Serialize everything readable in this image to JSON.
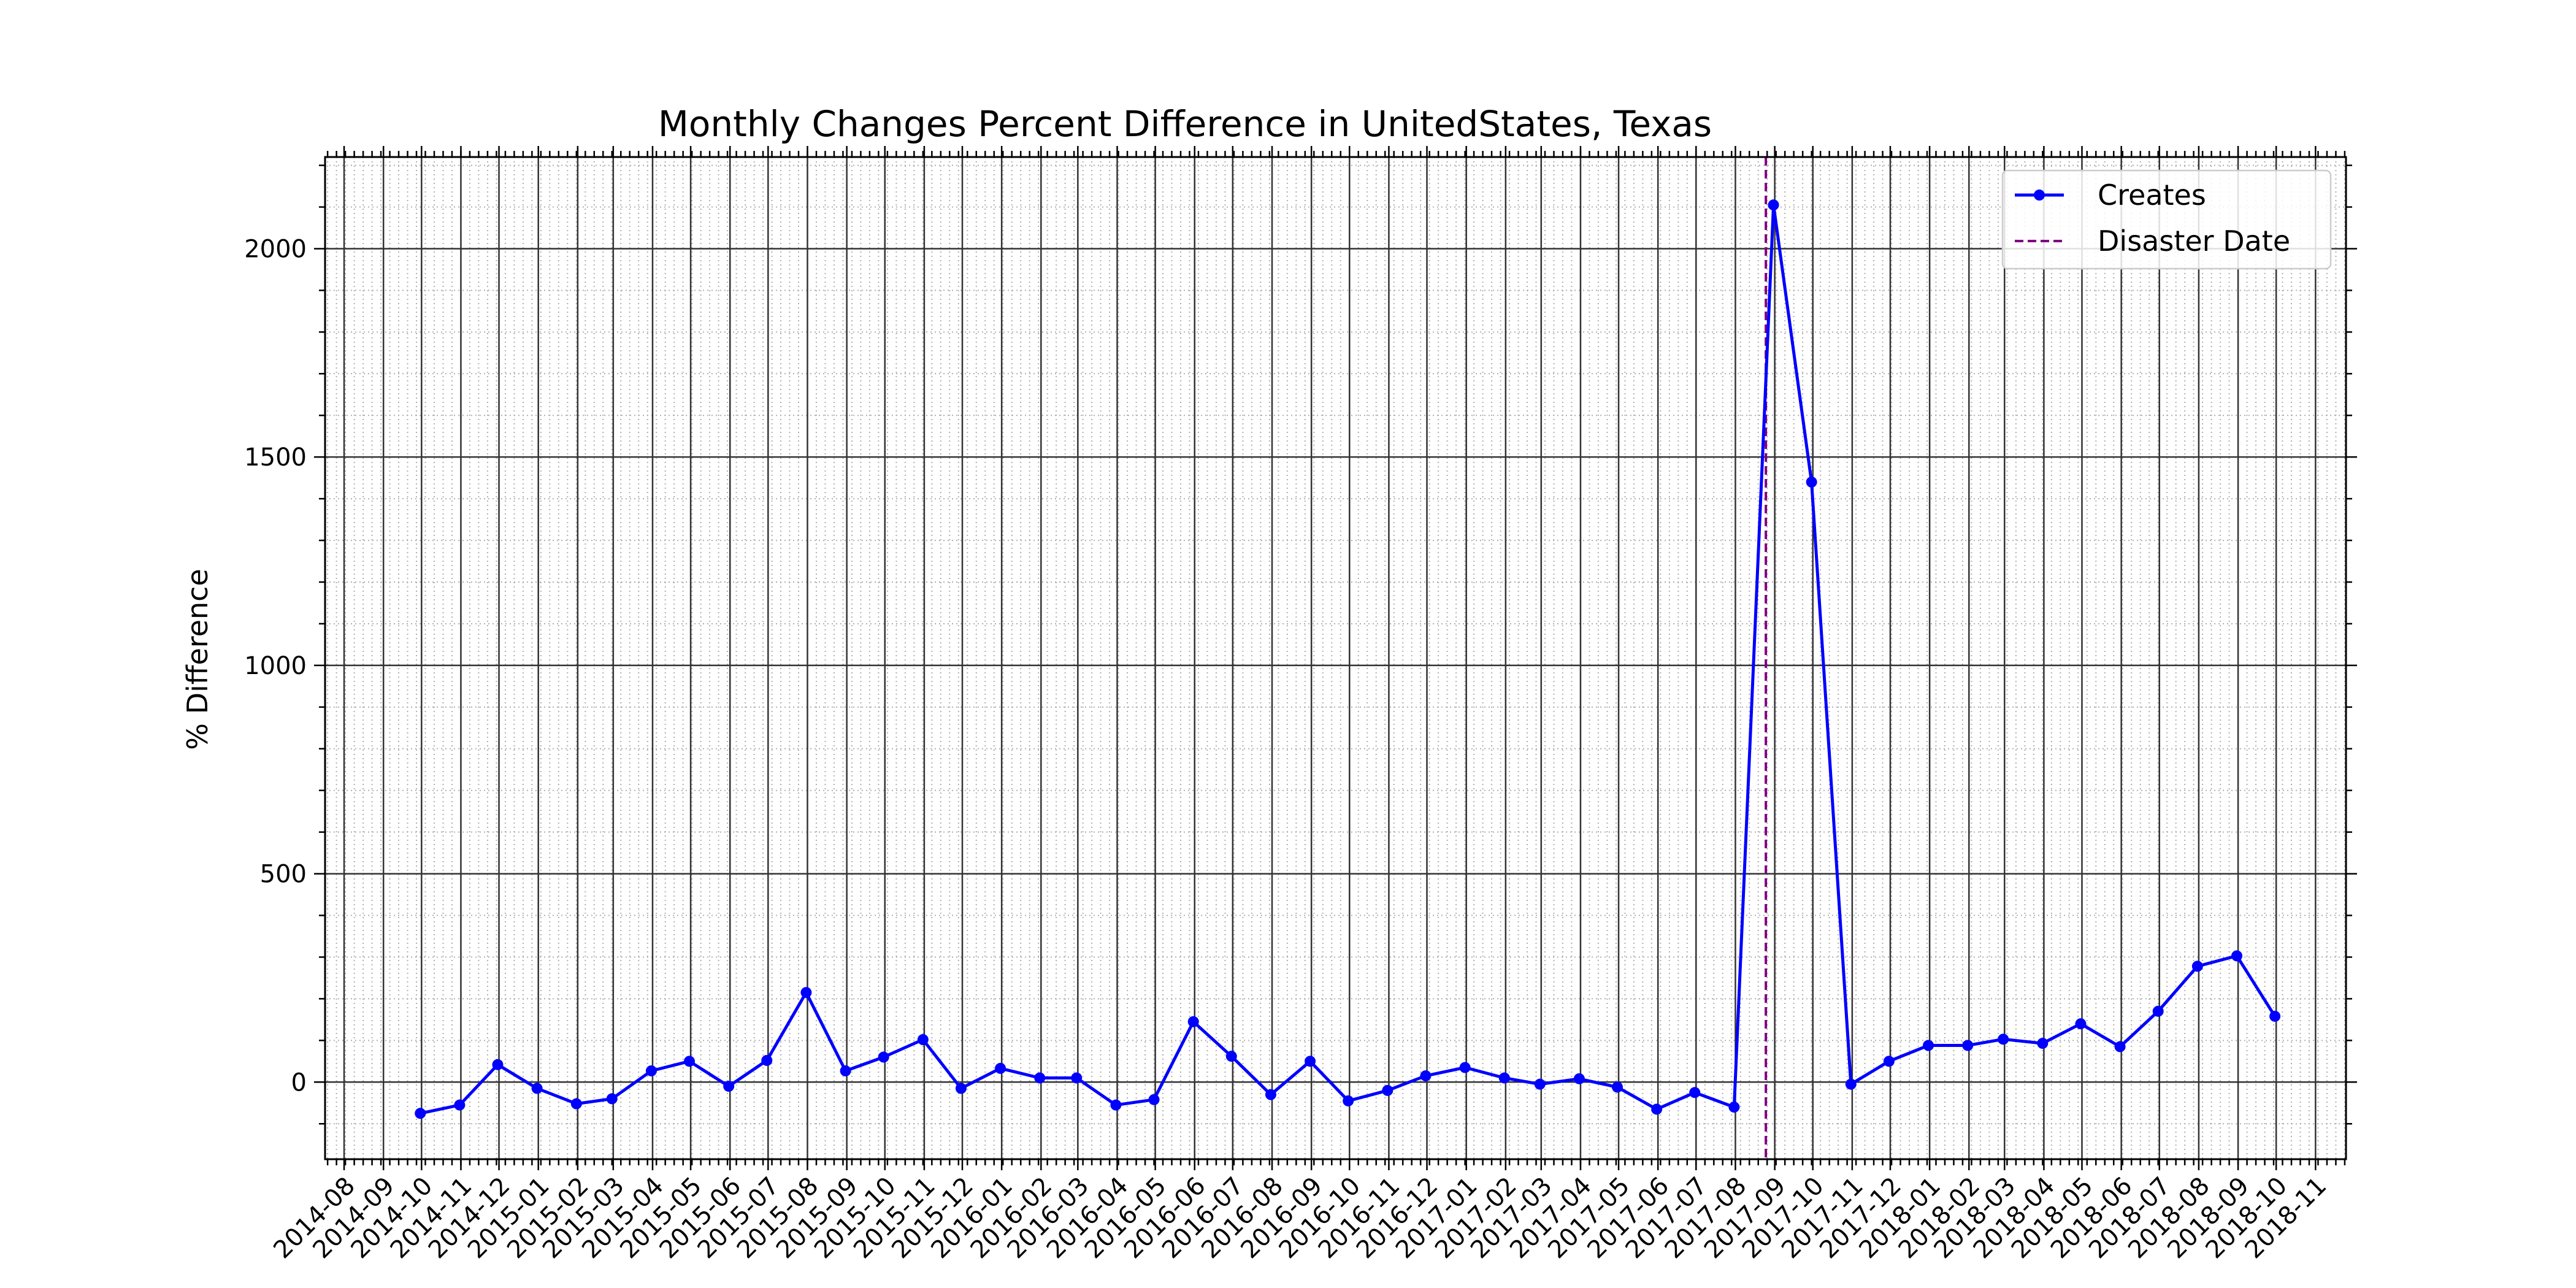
{
  "chart_data": {
    "type": "line",
    "title": "Monthly Changes Percent Difference in UnitedStates, Texas",
    "xlabel": "",
    "ylabel": "% Difference",
    "x_axis_type": "date",
    "xlim": [
      "2014-07-17",
      "2018-11-25"
    ],
    "ylim": [
      -185,
      2220
    ],
    "y_ticks": [
      0,
      500,
      1000,
      1500,
      2000
    ],
    "x_tick_labels": [
      "2014-08",
      "2014-09",
      "2014-10",
      "2014-11",
      "2014-12",
      "2015-01",
      "2015-02",
      "2015-03",
      "2015-04",
      "2015-05",
      "2015-06",
      "2015-07",
      "2015-08",
      "2015-09",
      "2015-10",
      "2015-11",
      "2015-12",
      "2016-01",
      "2016-02",
      "2016-03",
      "2016-04",
      "2016-05",
      "2016-06",
      "2016-07",
      "2016-08",
      "2016-09",
      "2016-10",
      "2016-11",
      "2016-12",
      "2017-01",
      "2017-02",
      "2017-03",
      "2017-04",
      "2017-05",
      "2017-06",
      "2017-07",
      "2017-08",
      "2017-09",
      "2017-10",
      "2017-11",
      "2017-12",
      "2018-01",
      "2018-02",
      "2018-03",
      "2018-04",
      "2018-05",
      "2018-06",
      "2018-07",
      "2018-08",
      "2018-09",
      "2018-10",
      "2018-11"
    ],
    "x_tick_rotation_deg": 45,
    "grid": {
      "major": true,
      "minor": true
    },
    "legend_position": "upper-right",
    "series": [
      {
        "name": "Creates",
        "color": "#0000ff",
        "marker": "circle",
        "points": [
          {
            "x": "2014-09-30",
            "y": -75
          },
          {
            "x": "2014-10-31",
            "y": -55
          },
          {
            "x": "2014-11-30",
            "y": 42
          },
          {
            "x": "2014-12-31",
            "y": -15
          },
          {
            "x": "2015-01-31",
            "y": -52
          },
          {
            "x": "2015-02-28",
            "y": -40
          },
          {
            "x": "2015-03-31",
            "y": 27
          },
          {
            "x": "2015-04-30",
            "y": 50
          },
          {
            "x": "2015-05-31",
            "y": -10
          },
          {
            "x": "2015-06-30",
            "y": 52
          },
          {
            "x": "2015-07-31",
            "y": 215
          },
          {
            "x": "2015-08-31",
            "y": 27
          },
          {
            "x": "2015-09-30",
            "y": 60
          },
          {
            "x": "2015-10-31",
            "y": 102
          },
          {
            "x": "2015-11-30",
            "y": -15
          },
          {
            "x": "2015-12-31",
            "y": 33
          },
          {
            "x": "2016-01-31",
            "y": 10
          },
          {
            "x": "2016-02-29",
            "y": 10
          },
          {
            "x": "2016-03-31",
            "y": -55
          },
          {
            "x": "2016-04-30",
            "y": -42
          },
          {
            "x": "2016-05-31",
            "y": 145
          },
          {
            "x": "2016-06-30",
            "y": 62
          },
          {
            "x": "2016-07-31",
            "y": -30
          },
          {
            "x": "2016-08-31",
            "y": 50
          },
          {
            "x": "2016-09-30",
            "y": -45
          },
          {
            "x": "2016-10-31",
            "y": -20
          },
          {
            "x": "2016-11-30",
            "y": 15
          },
          {
            "x": "2016-12-31",
            "y": 35
          },
          {
            "x": "2017-01-31",
            "y": 10
          },
          {
            "x": "2017-02-28",
            "y": -5
          },
          {
            "x": "2017-03-31",
            "y": 8
          },
          {
            "x": "2017-04-30",
            "y": -12
          },
          {
            "x": "2017-05-31",
            "y": -65
          },
          {
            "x": "2017-06-30",
            "y": -25
          },
          {
            "x": "2017-07-31",
            "y": -60
          },
          {
            "x": "2017-08-31",
            "y": 2105
          },
          {
            "x": "2017-09-30",
            "y": 1440
          },
          {
            "x": "2017-10-31",
            "y": -5
          },
          {
            "x": "2017-11-30",
            "y": 50
          },
          {
            "x": "2017-12-31",
            "y": 88
          },
          {
            "x": "2018-01-31",
            "y": 88
          },
          {
            "x": "2018-02-28",
            "y": 103
          },
          {
            "x": "2018-03-31",
            "y": 93
          },
          {
            "x": "2018-04-30",
            "y": 140
          },
          {
            "x": "2018-05-31",
            "y": 85
          },
          {
            "x": "2018-06-30",
            "y": 170
          },
          {
            "x": "2018-07-31",
            "y": 278
          },
          {
            "x": "2018-08-31",
            "y": 303
          },
          {
            "x": "2018-09-30",
            "y": 158
          }
        ]
      }
    ],
    "reference_lines": [
      {
        "name": "Disaster Date",
        "orientation": "vertical",
        "x": "2017-08-25",
        "color": "#800080",
        "style": "dashed"
      }
    ]
  }
}
